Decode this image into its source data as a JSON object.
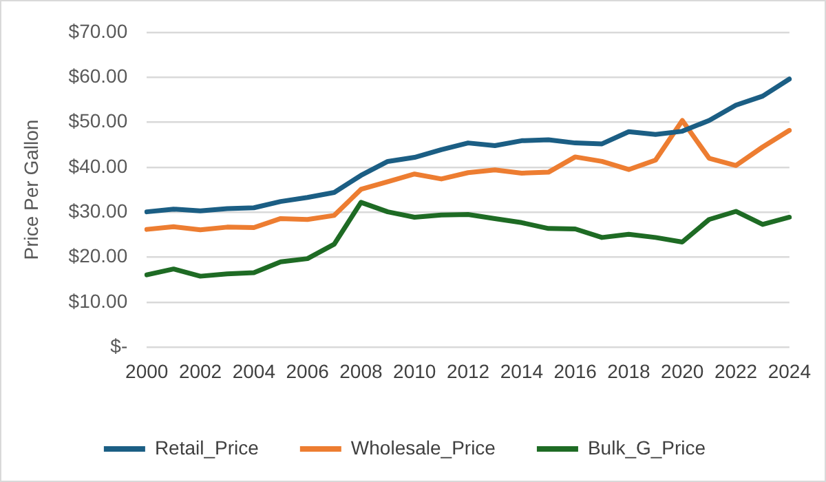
{
  "chart_data": {
    "type": "line",
    "ylabel": "Price Per Gallon",
    "categories": [
      "2000",
      null,
      "2002",
      null,
      "2004",
      null,
      "2006",
      null,
      "2008",
      null,
      "2010",
      null,
      "2012",
      null,
      "2014",
      null,
      "2016",
      null,
      "2018",
      null,
      "2020",
      null,
      "2022",
      null,
      "2024"
    ],
    "series": [
      {
        "name": "Retail_Price",
        "color": "#1b5e84",
        "values": [
          30.1,
          30.7,
          30.3,
          30.8,
          31.0,
          32.4,
          33.3,
          34.4,
          38.2,
          41.3,
          42.2,
          43.9,
          45.4,
          44.8,
          45.9,
          46.1,
          45.4,
          45.2,
          47.9,
          47.3,
          48.0,
          50.4,
          53.8,
          55.8,
          59.6
        ]
      },
      {
        "name": "Wholesale_Price",
        "color": "#ed7d31",
        "values": [
          26.2,
          26.8,
          26.1,
          26.7,
          26.6,
          28.6,
          28.4,
          29.3,
          35.1,
          36.8,
          38.5,
          37.4,
          38.8,
          39.4,
          38.7,
          38.9,
          42.3,
          41.3,
          39.5,
          41.6,
          50.4,
          42.0,
          40.4,
          44.5,
          48.2
        ]
      },
      {
        "name": "Bulk_G_Price",
        "color": "#1e6b24",
        "values": [
          16.1,
          17.4,
          15.8,
          16.3,
          16.6,
          19.0,
          19.7,
          22.9,
          32.2,
          30.1,
          28.9,
          29.4,
          29.5,
          28.6,
          27.7,
          26.4,
          26.3,
          24.4,
          25.1,
          24.4,
          23.4,
          28.4,
          30.2,
          27.3,
          28.9
        ]
      }
    ],
    "ylim": [
      0,
      70
    ],
    "yticks": [
      {
        "value": 0,
        "label": "$-"
      },
      {
        "value": 10,
        "label": "$10.00"
      },
      {
        "value": 20,
        "label": "$20.00"
      },
      {
        "value": 30,
        "label": "$30.00"
      },
      {
        "value": 40,
        "label": "$40.00"
      },
      {
        "value": 50,
        "label": "$50.00"
      },
      {
        "value": 60,
        "label": "$60.00"
      },
      {
        "value": 70,
        "label": "$70.00"
      }
    ],
    "grid": "y",
    "legend": "bottom",
    "marker": "none",
    "line_style": "solid"
  }
}
